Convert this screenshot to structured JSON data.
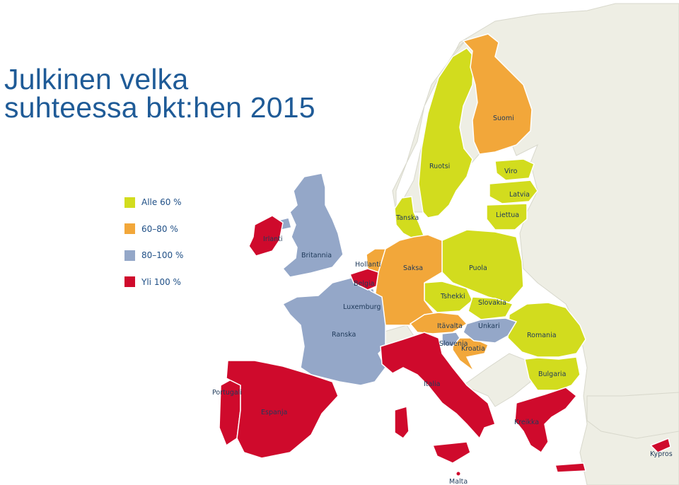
{
  "title": {
    "line1": "Julkinen velka",
    "line2": "suhteessa bkt:hen 2015"
  },
  "legend": [
    {
      "label": "Alle 60 %",
      "color": "#d2dc1e"
    },
    {
      "label": "60–80 %",
      "color": "#f2a73a"
    },
    {
      "label": "80–100 %",
      "color": "#94a7c8"
    },
    {
      "label": "Yli 100 %",
      "color": "#cf0a2c"
    }
  ],
  "colors": {
    "background_land": "#eeeee4",
    "sea": "#ffffff",
    "border": "#ffffff"
  },
  "countries": {
    "suomi": "Suomi",
    "ruotsi": "Ruotsi",
    "viro": "Viro",
    "latvia": "Latvia",
    "liettua": "Liettua",
    "tanska": "Tanska",
    "irlanti": "Irlanti",
    "britannia": "Britannia",
    "hollanti": "Hollanti",
    "belgia": "Belgia",
    "luxemburg": "Luxemburg",
    "saksa": "Saksa",
    "puola": "Puola",
    "tshekki": "Tshekki",
    "slovakia": "Slovakia",
    "itavalta": "Itävalta",
    "unkari": "Unkari",
    "slovenia": "Slovenia",
    "kroatia": "Kroatia",
    "romania": "Romania",
    "bulgaria": "Bulgaria",
    "ranska": "Ranska",
    "italia": "Italia",
    "portugali": "Portugali",
    "espanja": "Espanja",
    "kreikka": "Kreikka",
    "kypros": "Kypros",
    "malta": "Malta"
  }
}
